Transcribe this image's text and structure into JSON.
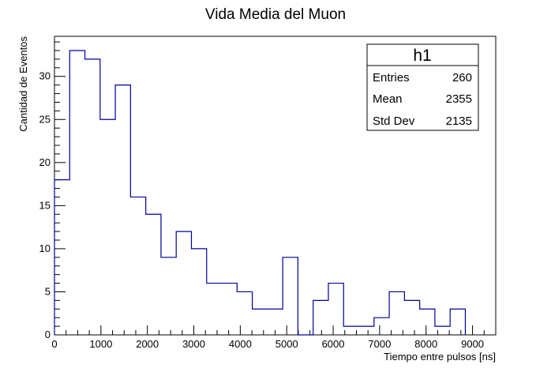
{
  "chart_data": {
    "type": "bar",
    "title": "Vida  Media del Muon",
    "xlabel": "Tiempo entre pulsos [ns]",
    "ylabel": "Cantidad de Eventos",
    "xlim": [
      0,
      9500
    ],
    "ylim": [
      0,
      34.65
    ],
    "x_ticks": [
      "0",
      "1000",
      "2000",
      "3000",
      "4000",
      "5000",
      "6000",
      "7000",
      "8000",
      "9000"
    ],
    "y_ticks": [
      "0",
      "5",
      "10",
      "15",
      "20",
      "25",
      "30"
    ],
    "bin_width": 327.6,
    "series": [
      {
        "line_color": "#000099",
        "values": [
          18,
          33,
          32,
          25,
          29,
          16,
          14,
          9,
          12,
          10,
          6,
          6,
          5,
          3,
          3,
          9,
          0,
          4,
          6,
          1,
          1,
          2,
          5,
          4,
          3,
          1,
          3
        ]
      }
    ],
    "grid": false
  },
  "stats_box": {
    "title": "h1",
    "rows": [
      {
        "label": "Entries",
        "value": "260"
      },
      {
        "label": "Mean",
        "value": "2355"
      },
      {
        "label": "Std Dev",
        "value": "2135"
      }
    ]
  }
}
